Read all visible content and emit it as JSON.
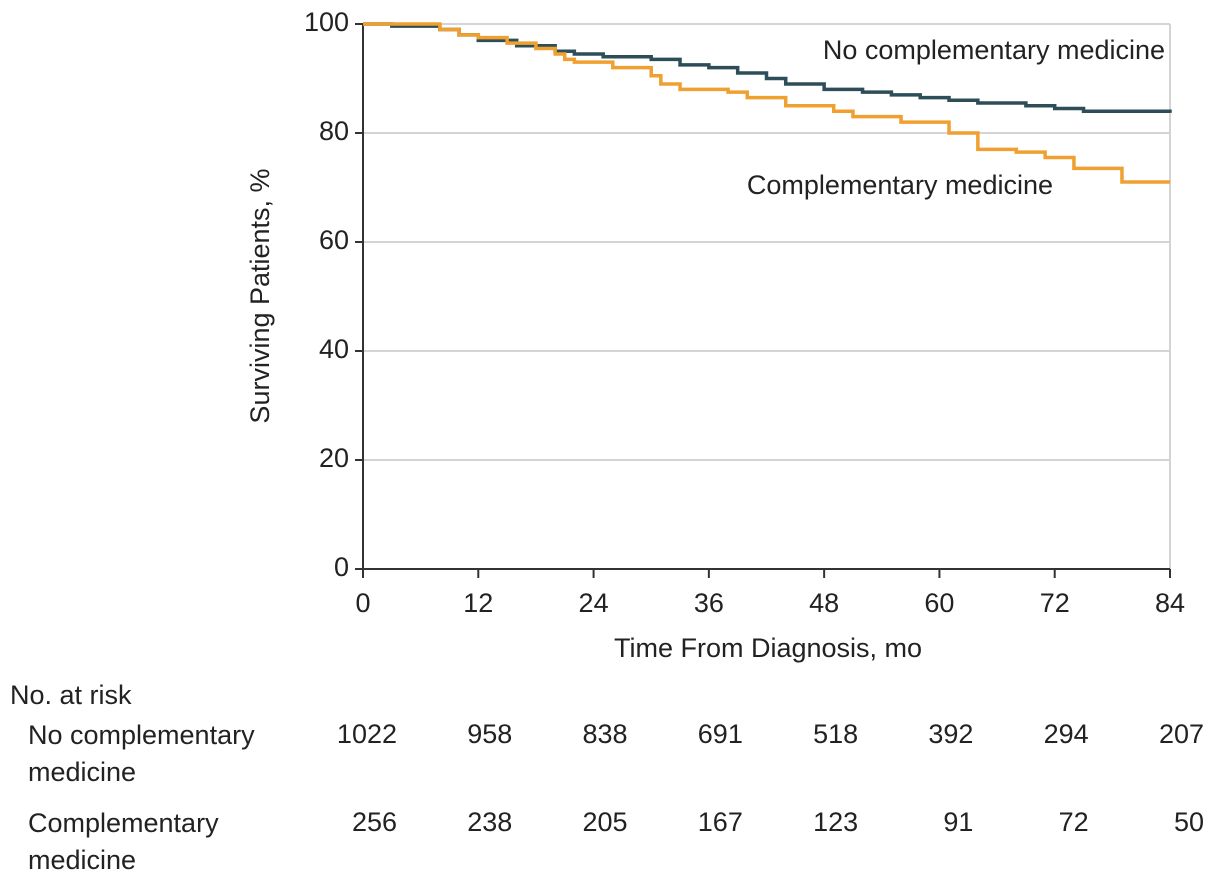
{
  "chart_data": {
    "type": "line",
    "step": "post",
    "xlabel": "Time From Diagnosis, mo",
    "ylabel": "Surviving Patients, %",
    "xlim": [
      0,
      84
    ],
    "xticks": [
      0,
      12,
      24,
      36,
      48,
      60,
      72,
      84
    ],
    "ylim": [
      0,
      100
    ],
    "yticks": [
      0,
      20,
      40,
      60,
      80,
      100
    ],
    "grid": true,
    "series": [
      {
        "name": "No complementary medicine",
        "color": "#2d4e58",
        "x": [
          0,
          3,
          8,
          10,
          12,
          16,
          20,
          22,
          25,
          30,
          33,
          36,
          39,
          42,
          44,
          48,
          52,
          55,
          58,
          61,
          64,
          69,
          72,
          75,
          84
        ],
        "values": [
          100,
          99.6,
          99,
          98,
          97,
          96,
          95,
          94.5,
          94,
          93.5,
          92.5,
          92,
          91,
          90,
          89,
          88,
          87.5,
          87,
          86.5,
          86,
          85.5,
          85,
          84.5,
          84,
          83.7
        ]
      },
      {
        "name": "Complementary medicine",
        "color": "#f0a030",
        "x": [
          0,
          8,
          10,
          12,
          15,
          18,
          20,
          21,
          22,
          26,
          30,
          31,
          33,
          38,
          40,
          44,
          49,
          51,
          56,
          61,
          64,
          68,
          71,
          74,
          79,
          84
        ],
        "values": [
          100,
          99,
          98,
          97.5,
          96.5,
          95.5,
          94.5,
          93.5,
          93,
          92,
          90.5,
          89,
          88,
          87.5,
          86.5,
          85,
          84,
          83,
          82,
          80,
          77,
          76.5,
          75.5,
          73.5,
          71,
          71
        ]
      }
    ],
    "risk_table": {
      "title": "No. at risk",
      "rows": [
        {
          "label": "No complementary medicine",
          "values": [
            1022,
            958,
            838,
            691,
            518,
            392,
            294,
            207
          ]
        },
        {
          "label": "Complementary medicine",
          "values": [
            256,
            238,
            205,
            167,
            123,
            91,
            72,
            50
          ]
        }
      ]
    }
  }
}
